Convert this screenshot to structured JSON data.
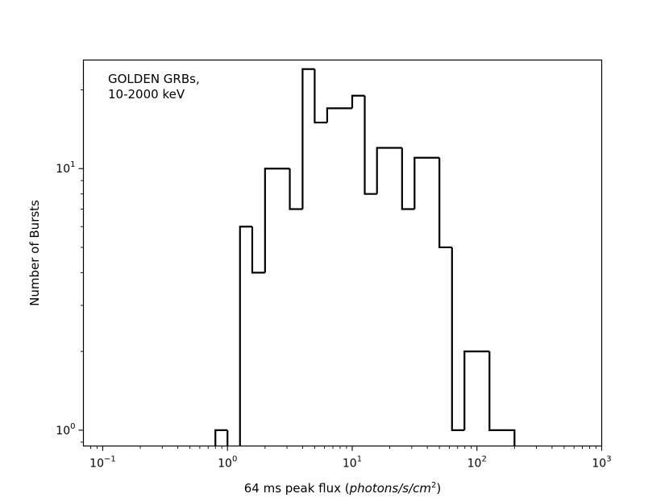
{
  "chart_data": {
    "type": "bar",
    "subtype": "step-histogram",
    "annotation": [
      "GOLDEN GRBs,",
      "10-2000 keV"
    ],
    "xlabel": {
      "prefix": "64 ms peak flux (",
      "italic": "photons/s/cm",
      "sup": "2",
      "suffix": ")"
    },
    "ylabel": "Number of Bursts",
    "xscale": "log",
    "yscale": "log",
    "xlim": [
      0.07,
      1000
    ],
    "ylim": [
      0.87,
      26
    ],
    "xticks": [
      {
        "value": 0.1,
        "base": "10",
        "exp": "−1"
      },
      {
        "value": 1,
        "base": "10",
        "exp": "0"
      },
      {
        "value": 10,
        "base": "10",
        "exp": "1"
      },
      {
        "value": 100,
        "base": "10",
        "exp": "2"
      },
      {
        "value": 1000,
        "base": "10",
        "exp": "3"
      }
    ],
    "yticks": [
      {
        "value": 1,
        "base": "10",
        "exp": "0"
      },
      {
        "value": 10,
        "base": "10",
        "exp": "1"
      }
    ],
    "grid": false,
    "bins": [
      {
        "x0": 0.8,
        "x1": 1.0,
        "count": 1
      },
      {
        "x0": 1.0,
        "x1": 1.26,
        "count": 0
      },
      {
        "x0": 1.26,
        "x1": 1.58,
        "count": 6
      },
      {
        "x0": 1.58,
        "x1": 2.0,
        "count": 4
      },
      {
        "x0": 2.0,
        "x1": 3.16,
        "count": 10
      },
      {
        "x0": 3.16,
        "x1": 4.0,
        "count": 7
      },
      {
        "x0": 4.0,
        "x1": 5.0,
        "count": 24
      },
      {
        "x0": 5.0,
        "x1": 6.3,
        "count": 15
      },
      {
        "x0": 6.3,
        "x1": 10.0,
        "count": 17
      },
      {
        "x0": 10.0,
        "x1": 12.6,
        "count": 19
      },
      {
        "x0": 12.6,
        "x1": 15.8,
        "count": 8
      },
      {
        "x0": 15.8,
        "x1": 25.1,
        "count": 12
      },
      {
        "x0": 25.1,
        "x1": 31.6,
        "count": 7
      },
      {
        "x0": 31.6,
        "x1": 50.0,
        "count": 11
      },
      {
        "x0": 50.0,
        "x1": 63.1,
        "count": 5
      },
      {
        "x0": 63.1,
        "x1": 79.4,
        "count": 1
      },
      {
        "x0": 79.4,
        "x1": 126.0,
        "count": 2
      },
      {
        "x0": 126.0,
        "x1": 200.0,
        "count": 1
      }
    ]
  }
}
